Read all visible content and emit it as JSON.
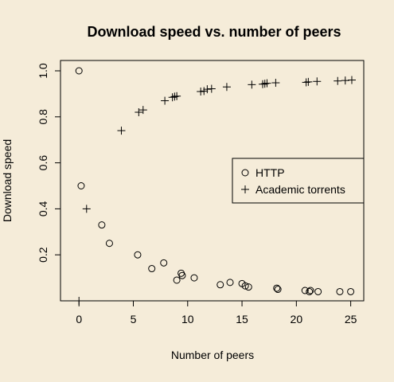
{
  "chart_data": {
    "type": "scatter",
    "title": "Download speed vs. number of peers",
    "xlabel": "Number of peers",
    "ylabel": "Download speed",
    "xlim": [
      -1.7,
      26.2
    ],
    "ylim": [
      0.0,
      1.045
    ],
    "x_ticks": [
      0,
      5,
      10,
      15,
      20,
      25
    ],
    "y_ticks": [
      0.2,
      0.4,
      0.6,
      0.8,
      1.0
    ],
    "x_tick_labels": [
      "0",
      "5",
      "10",
      "15",
      "20",
      "25"
    ],
    "y_tick_labels": [
      "0.2",
      "0.4",
      "0.6",
      "0.8",
      "1.0"
    ],
    "grid": false,
    "legend_position": "right",
    "series": [
      {
        "name": "HTTP",
        "marker": "circle",
        "points": [
          [
            0.0,
            1.0
          ],
          [
            0.2,
            0.5
          ],
          [
            2.1,
            0.33
          ],
          [
            2.8,
            0.25
          ],
          [
            5.4,
            0.2
          ],
          [
            6.7,
            0.14
          ],
          [
            7.8,
            0.165
          ],
          [
            9.0,
            0.09
          ],
          [
            9.4,
            0.12
          ],
          [
            9.5,
            0.11
          ],
          [
            10.6,
            0.1
          ],
          [
            13.0,
            0.07
          ],
          [
            13.9,
            0.08
          ],
          [
            15.0,
            0.075
          ],
          [
            15.3,
            0.065
          ],
          [
            15.6,
            0.06
          ],
          [
            18.2,
            0.055
          ],
          [
            18.3,
            0.05
          ],
          [
            20.8,
            0.045
          ],
          [
            21.2,
            0.04
          ],
          [
            21.3,
            0.045
          ],
          [
            22.0,
            0.04
          ],
          [
            24.0,
            0.04
          ],
          [
            25.0,
            0.04
          ]
        ]
      },
      {
        "name": "Academic torrents",
        "marker": "plus",
        "points": [
          [
            0.0,
            0.0
          ],
          [
            0.7,
            0.4
          ],
          [
            3.9,
            0.74
          ],
          [
            5.5,
            0.82
          ],
          [
            5.9,
            0.83
          ],
          [
            7.9,
            0.87
          ],
          [
            8.6,
            0.885
          ],
          [
            8.8,
            0.888
          ],
          [
            9.0,
            0.89
          ],
          [
            11.2,
            0.91
          ],
          [
            11.5,
            0.912
          ],
          [
            11.8,
            0.92
          ],
          [
            12.2,
            0.922
          ],
          [
            13.6,
            0.93
          ],
          [
            15.9,
            0.94
          ],
          [
            16.9,
            0.942
          ],
          [
            17.1,
            0.944
          ],
          [
            17.3,
            0.946
          ],
          [
            18.1,
            0.948
          ],
          [
            20.9,
            0.95
          ],
          [
            21.1,
            0.952
          ],
          [
            21.9,
            0.954
          ],
          [
            23.8,
            0.956
          ],
          [
            24.5,
            0.958
          ],
          [
            25.1,
            0.96
          ]
        ]
      }
    ]
  }
}
